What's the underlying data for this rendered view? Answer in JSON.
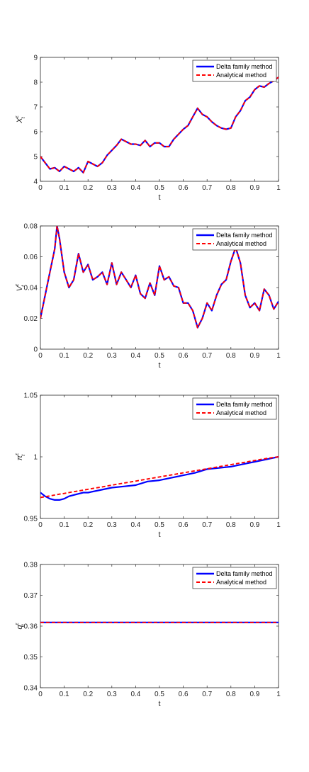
{
  "colors": {
    "delta": "#0000ff",
    "analytical": "#ff0000",
    "axis": "#262626"
  },
  "legend_placement": "top-right",
  "chart_data": [
    {
      "type": "line",
      "ylabel": "X_t^ε",
      "xlabel": "t",
      "xlim": [
        0,
        1
      ],
      "ylim": [
        4,
        9
      ],
      "xticks": [
        "0",
        "0.1",
        "0.2",
        "0.3",
        "0.4",
        "0.5",
        "0.6",
        "0.7",
        "0.8",
        "0.9",
        "1"
      ],
      "yticks": [
        "4",
        "5",
        "6",
        "7",
        "8",
        "9"
      ],
      "grid": false,
      "x": [
        0,
        0.02,
        0.04,
        0.06,
        0.08,
        0.1,
        0.12,
        0.14,
        0.16,
        0.18,
        0.2,
        0.22,
        0.24,
        0.26,
        0.28,
        0.3,
        0.32,
        0.34,
        0.36,
        0.38,
        0.4,
        0.42,
        0.44,
        0.46,
        0.48,
        0.5,
        0.52,
        0.54,
        0.56,
        0.58,
        0.6,
        0.62,
        0.64,
        0.66,
        0.68,
        0.7,
        0.72,
        0.74,
        0.76,
        0.78,
        0.8,
        0.82,
        0.84,
        0.86,
        0.88,
        0.9,
        0.92,
        0.94,
        0.96,
        0.98,
        1
      ],
      "series": [
        {
          "name": "Delta family method",
          "style": "solid",
          "values": [
            5.0,
            4.75,
            4.5,
            4.55,
            4.4,
            4.6,
            4.5,
            4.4,
            4.55,
            4.35,
            4.8,
            4.7,
            4.6,
            4.75,
            5.05,
            5.25,
            5.45,
            5.7,
            5.6,
            5.5,
            5.5,
            5.45,
            5.65,
            5.4,
            5.55,
            5.55,
            5.4,
            5.4,
            5.7,
            5.9,
            6.1,
            6.25,
            6.6,
            6.95,
            6.7,
            6.6,
            6.4,
            6.25,
            6.15,
            6.1,
            6.15,
            6.6,
            6.85,
            7.25,
            7.4,
            7.7,
            7.85,
            7.8,
            7.95,
            8.05,
            8.2
          ]
        },
        {
          "name": "Analytical method",
          "style": "dashed",
          "values": [
            5.0,
            4.75,
            4.5,
            4.55,
            4.4,
            4.6,
            4.5,
            4.4,
            4.55,
            4.35,
            4.8,
            4.7,
            4.6,
            4.75,
            5.05,
            5.25,
            5.45,
            5.7,
            5.6,
            5.5,
            5.5,
            5.45,
            5.65,
            5.4,
            5.55,
            5.55,
            5.4,
            5.4,
            5.7,
            5.9,
            6.1,
            6.25,
            6.6,
            6.95,
            6.7,
            6.6,
            6.4,
            6.25,
            6.15,
            6.1,
            6.15,
            6.6,
            6.85,
            7.25,
            7.4,
            7.7,
            7.85,
            7.8,
            7.95,
            8.05,
            8.2
          ]
        }
      ]
    },
    {
      "type": "line",
      "ylabel": "V_t^ε",
      "xlabel": "t",
      "xlim": [
        0,
        1
      ],
      "ylim": [
        0,
        0.08
      ],
      "xticks": [
        "0",
        "0.1",
        "0.2",
        "0.3",
        "0.4",
        "0.5",
        "0.6",
        "0.7",
        "0.8",
        "0.9",
        "1"
      ],
      "yticks": [
        "0",
        "0.02",
        "0.04",
        "0.06",
        "0.08"
      ],
      "grid": false,
      "x": [
        0,
        0.02,
        0.04,
        0.06,
        0.07,
        0.08,
        0.1,
        0.12,
        0.14,
        0.16,
        0.18,
        0.2,
        0.22,
        0.24,
        0.26,
        0.28,
        0.3,
        0.32,
        0.34,
        0.36,
        0.38,
        0.4,
        0.42,
        0.44,
        0.46,
        0.48,
        0.5,
        0.52,
        0.54,
        0.56,
        0.58,
        0.6,
        0.62,
        0.64,
        0.66,
        0.68,
        0.7,
        0.72,
        0.74,
        0.76,
        0.78,
        0.8,
        0.82,
        0.84,
        0.86,
        0.88,
        0.9,
        0.92,
        0.94,
        0.96,
        0.98,
        1
      ],
      "series": [
        {
          "name": "Delta family method",
          "style": "solid",
          "values": [
            0.02,
            0.035,
            0.05,
            0.065,
            0.08,
            0.072,
            0.05,
            0.04,
            0.045,
            0.062,
            0.05,
            0.055,
            0.045,
            0.047,
            0.05,
            0.042,
            0.056,
            0.042,
            0.05,
            0.045,
            0.04,
            0.048,
            0.036,
            0.033,
            0.043,
            0.035,
            0.054,
            0.045,
            0.047,
            0.041,
            0.04,
            0.03,
            0.03,
            0.025,
            0.014,
            0.02,
            0.03,
            0.025,
            0.035,
            0.042,
            0.045,
            0.057,
            0.066,
            0.056,
            0.035,
            0.027,
            0.03,
            0.025,
            0.039,
            0.035,
            0.026,
            0.031
          ]
        },
        {
          "name": "Analytical method",
          "style": "dashed",
          "values": [
            0.02,
            0.035,
            0.05,
            0.065,
            0.08,
            0.072,
            0.05,
            0.04,
            0.045,
            0.062,
            0.05,
            0.055,
            0.045,
            0.047,
            0.05,
            0.042,
            0.056,
            0.042,
            0.05,
            0.045,
            0.04,
            0.048,
            0.036,
            0.033,
            0.043,
            0.035,
            0.054,
            0.045,
            0.047,
            0.041,
            0.04,
            0.03,
            0.03,
            0.025,
            0.014,
            0.02,
            0.03,
            0.025,
            0.035,
            0.042,
            0.045,
            0.057,
            0.066,
            0.056,
            0.035,
            0.027,
            0.03,
            0.025,
            0.039,
            0.035,
            0.026,
            0.031
          ]
        }
      ]
    },
    {
      "type": "line",
      "ylabel": "π_t^ε",
      "xlabel": "t",
      "xlim": [
        0,
        1
      ],
      "ylim": [
        0.95,
        1.05
      ],
      "xticks": [
        "0",
        "0.1",
        "0.2",
        "0.3",
        "0.4",
        "0.5",
        "0.6",
        "0.7",
        "0.8",
        "0.9",
        "1"
      ],
      "yticks": [
        "0.95",
        "1",
        "1.05"
      ],
      "grid": false,
      "x": [
        0,
        0.02,
        0.04,
        0.06,
        0.08,
        0.1,
        0.12,
        0.14,
        0.16,
        0.18,
        0.2,
        0.25,
        0.3,
        0.35,
        0.4,
        0.45,
        0.5,
        0.55,
        0.6,
        0.65,
        0.7,
        0.75,
        0.8,
        0.85,
        0.9,
        0.95,
        1
      ],
      "series": [
        {
          "name": "Delta family method",
          "style": "solid",
          "values": [
            0.971,
            0.968,
            0.966,
            0.965,
            0.965,
            0.966,
            0.968,
            0.969,
            0.97,
            0.971,
            0.971,
            0.973,
            0.975,
            0.976,
            0.977,
            0.98,
            0.981,
            0.983,
            0.985,
            0.987,
            0.99,
            0.991,
            0.992,
            0.994,
            0.996,
            0.998,
            1.0
          ]
        },
        {
          "name": "Analytical method",
          "style": "dashed",
          "values": [
            0.967,
            0.9677,
            0.9683,
            0.969,
            0.9697,
            0.9703,
            0.971,
            0.9717,
            0.9723,
            0.973,
            0.9737,
            0.9753,
            0.977,
            0.9787,
            0.9803,
            0.982,
            0.9837,
            0.9853,
            0.987,
            0.9887,
            0.9903,
            0.992,
            0.9937,
            0.9953,
            0.997,
            0.9987,
            1.0
          ]
        }
      ]
    },
    {
      "type": "line",
      "ylabel": "q_t^ε",
      "xlabel": "t",
      "xlim": [
        0,
        1
      ],
      "ylim": [
        0.34,
        0.38
      ],
      "xticks": [
        "0",
        "0.1",
        "0.2",
        "0.3",
        "0.4",
        "0.5",
        "0.6",
        "0.7",
        "0.8",
        "0.9",
        "1"
      ],
      "yticks": [
        "0.34",
        "0.35",
        "0.36",
        "0.37",
        "0.38"
      ],
      "grid": false,
      "x": [
        0,
        1
      ],
      "series": [
        {
          "name": "Delta family method",
          "style": "solid",
          "values": [
            0.3612,
            0.3612
          ]
        },
        {
          "name": "Analytical method",
          "style": "dashed",
          "values": [
            0.3612,
            0.3612
          ]
        }
      ]
    }
  ]
}
